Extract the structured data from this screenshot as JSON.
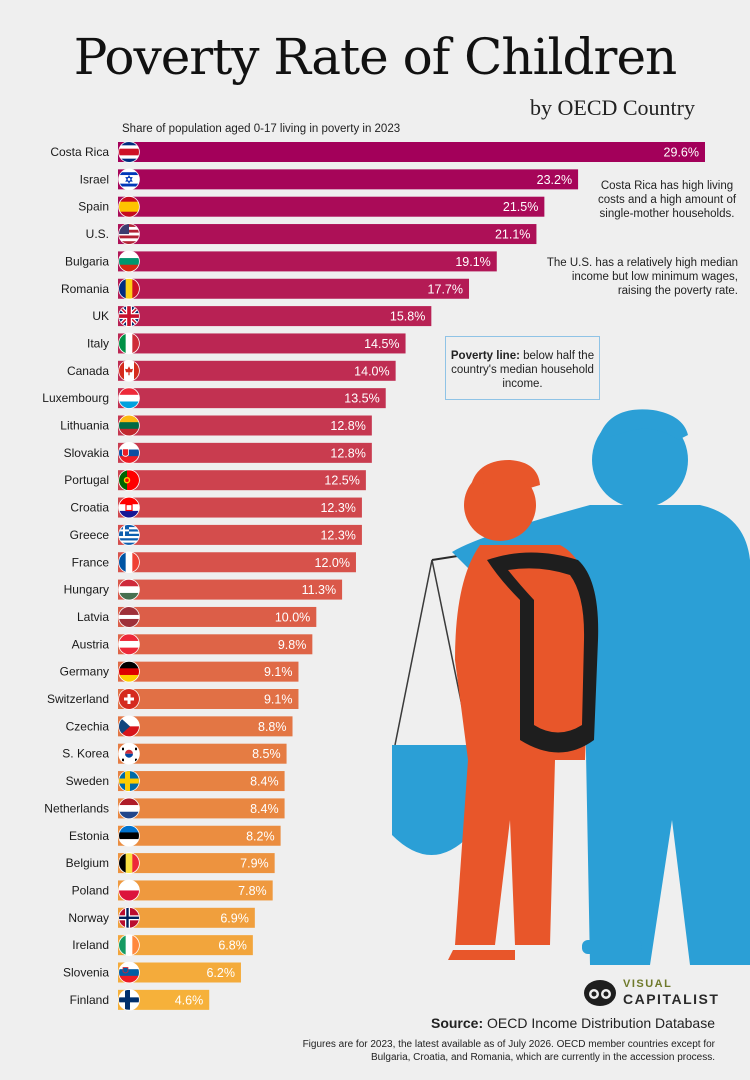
{
  "header": {
    "title": "Poverty Rate of Children",
    "subtitle": "by OECD Country",
    "description": "Share of population aged 0-17 living in poverty in 2023"
  },
  "notes": {
    "costa_rica": "Costa Rica has high living costs and a high amount of single-mother households.",
    "us": "The U.S. has a relatively high median income but low minimum wages, raising the poverty rate.",
    "poverty_line_label": "Poverty line:",
    "poverty_line_text": "below half the country's median household income."
  },
  "footer": {
    "source_label": "Source:",
    "source_text": "OECD Income Distribution Database",
    "footnote": "Figures are for 2023, the latest available as of July 2026. OECD member countries except for Bulgaria, Croatia, and Romania, which are currently in the accession process.",
    "brand_top": "VISUAL",
    "brand_bottom": "CAPITALIST"
  },
  "colors": {
    "bar_top": "#a3005a",
    "bar_mid": "#d9554a",
    "bar_bottom": "#f6b13a",
    "child_orange": "#e8562a",
    "child_blue": "#2b9fd6"
  },
  "chart_data": {
    "type": "bar",
    "orientation": "horizontal",
    "unit": "%",
    "categories": [
      "Costa Rica",
      "Israel",
      "Spain",
      "U.S.",
      "Bulgaria",
      "Romania",
      "UK",
      "Italy",
      "Canada",
      "Luxembourg",
      "Lithuania",
      "Slovakia",
      "Portugal",
      "Croatia",
      "Greece",
      "France",
      "Hungary",
      "Latvia",
      "Austria",
      "Germany",
      "Switzerland",
      "Czechia",
      "S. Korea",
      "Sweden",
      "Netherlands",
      "Estonia",
      "Belgium",
      "Poland",
      "Norway",
      "Ireland",
      "Slovenia",
      "Finland"
    ],
    "values": [
      29.6,
      23.2,
      21.5,
      21.1,
      19.1,
      17.7,
      15.8,
      14.5,
      14.0,
      13.5,
      12.8,
      12.8,
      12.5,
      12.3,
      12.3,
      12.0,
      11.3,
      10.0,
      9.8,
      9.1,
      9.1,
      8.8,
      8.5,
      8.4,
      8.4,
      8.2,
      7.9,
      7.8,
      6.9,
      6.8,
      6.2,
      4.6
    ],
    "labels": [
      "29.6%",
      "23.2%",
      "21.5%",
      "21.1%",
      "19.1%",
      "17.7%",
      "15.8%",
      "14.5%",
      "14.0%",
      "13.5%",
      "12.8%",
      "12.8%",
      "12.5%",
      "12.3%",
      "12.3%",
      "12.0%",
      "11.3%",
      "10.0%",
      "9.8%",
      "9.1%",
      "9.1%",
      "8.8%",
      "8.5%",
      "8.4%",
      "8.4%",
      "8.2%",
      "7.9%",
      "7.8%",
      "6.9%",
      "6.8%",
      "6.2%",
      "4.6%"
    ],
    "flags": [
      "costa-rica-flag",
      "israel-flag",
      "spain-flag",
      "us-flag",
      "bulgaria-flag",
      "romania-flag",
      "uk-flag",
      "italy-flag",
      "canada-flag",
      "luxembourg-flag",
      "lithuania-flag",
      "slovakia-flag",
      "portugal-flag",
      "croatia-flag",
      "greece-flag",
      "france-flag",
      "hungary-flag",
      "latvia-flag",
      "austria-flag",
      "germany-flag",
      "switzerland-flag",
      "czechia-flag",
      "south-korea-flag",
      "sweden-flag",
      "netherlands-flag",
      "estonia-flag",
      "belgium-flag",
      "poland-flag",
      "norway-flag",
      "ireland-flag",
      "slovenia-flag",
      "finland-flag"
    ],
    "xlim": [
      0,
      29.6
    ],
    "grid": false,
    "legend": "none"
  }
}
